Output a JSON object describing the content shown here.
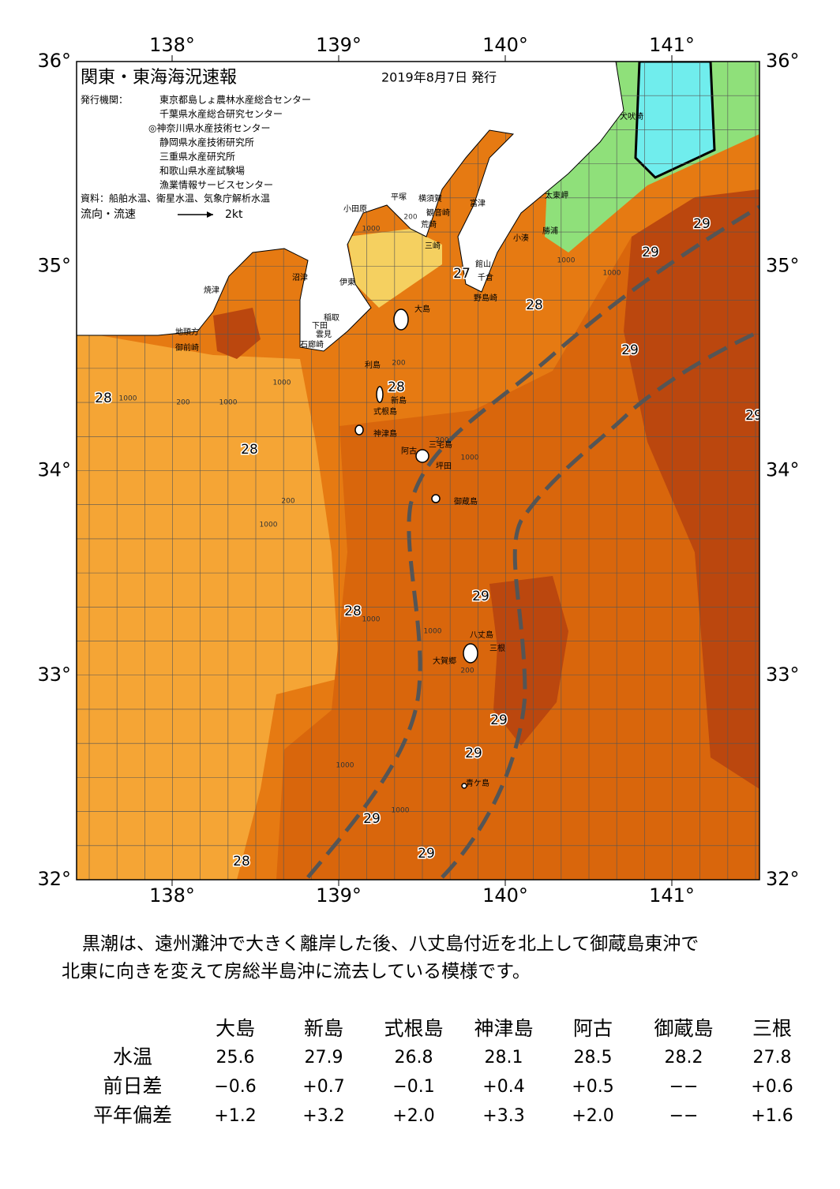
{
  "header": {
    "title": "関東・東海海況速報",
    "date": "2019年8月7日 発行",
    "agencies_label": "発行機関：",
    "agencies": [
      "東京都島しょ農林水産総合センター",
      "千葉県水産総合研究センター",
      "◎神奈川県水産技術センター",
      "静岡県水産技術研究所",
      "三重県水産研究所",
      "和歌山県水産試験場",
      "漁業情報サービスセンター"
    ],
    "sources": "資料：船舶水温、衛星水温、気象庁解析水温",
    "flow_legend": "流向・流速",
    "flow_scale": "2kt"
  },
  "map": {
    "lon_ticks": [
      {
        "value": 138,
        "label": "138°"
      },
      {
        "value": 139,
        "label": "139°"
      },
      {
        "value": 140,
        "label": "140°"
      },
      {
        "value": 141,
        "label": "141°"
      }
    ],
    "lat_ticks": [
      {
        "value": 36,
        "label": "36°"
      },
      {
        "value": 35,
        "label": "35°"
      },
      {
        "value": 34,
        "label": "34°"
      },
      {
        "value": 33,
        "label": "33°"
      },
      {
        "value": 32,
        "label": "32°"
      }
    ],
    "places": [
      "犬吠埼",
      "太東岬",
      "勝浦",
      "小湊",
      "富津",
      "館山",
      "千倉",
      "野島崎",
      "横須賀",
      "観音崎",
      "荒崎",
      "三崎",
      "平塚",
      "小田原",
      "伊東",
      "沼津",
      "焼津",
      "稲取",
      "下田",
      "雲見",
      "石廊崎",
      "地頭方",
      "御前崎",
      "大島",
      "利島",
      "新島",
      "式根島",
      "神津島",
      "三宅島",
      "阿古",
      "坪田",
      "御蔵島",
      "八丈島",
      "三根",
      "大賀郷",
      "青ケ島"
    ],
    "isotherm_labels": [
      28,
      28,
      28,
      27,
      28,
      29,
      29,
      29,
      29,
      29,
      28,
      29,
      29,
      29,
      29,
      28
    ],
    "depth_labels": [
      "1000",
      "1000",
      "1000",
      "1000",
      "1000",
      "1000",
      "1000",
      "1000",
      "1000",
      "1000",
      "1000",
      "1000",
      "200",
      "200",
      "200",
      "200",
      "200",
      "200"
    ]
  },
  "description": [
    "黒潮は、遠州灘沖で大きく離岸した後、八丈島付近を北上して御蔵島東沖で",
    "北東に向きを変えて房総半島沖に流去している模様です。"
  ],
  "table": {
    "columns": [
      "大島",
      "新島",
      "式根島",
      "神津島",
      "阿古",
      "御蔵島",
      "三根"
    ],
    "rows": [
      {
        "label": "水温",
        "values": [
          "25.6",
          "27.9",
          "26.8",
          "28.1",
          "28.5",
          "28.2",
          "27.8"
        ]
      },
      {
        "label": "前日差",
        "values": [
          "−0.6",
          "+0.7",
          "−0.1",
          "+0.4",
          "+0.5",
          "−−",
          "+0.6"
        ]
      },
      {
        "label": "平年偏差",
        "values": [
          "+1.2",
          "+3.2",
          "+2.0",
          "+3.3",
          "+2.0",
          "−−",
          "+1.6"
        ]
      }
    ]
  }
}
